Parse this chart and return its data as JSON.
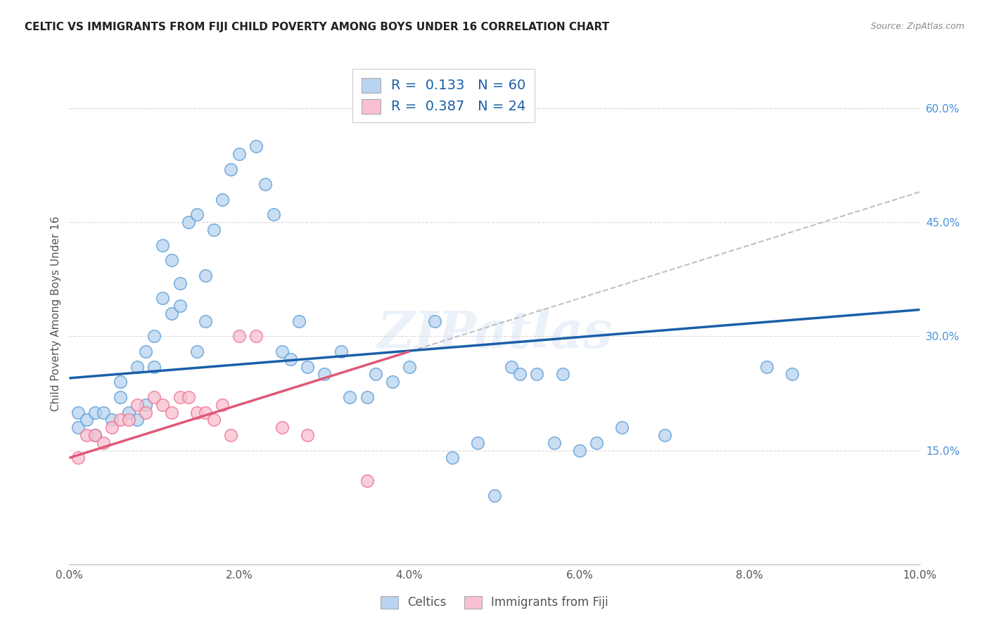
{
  "title": "CELTIC VS IMMIGRANTS FROM FIJI CHILD POVERTY AMONG BOYS UNDER 16 CORRELATION CHART",
  "source": "Source: ZipAtlas.com",
  "ylabel": "Child Poverty Among Boys Under 16",
  "x_min": 0.0,
  "x_max": 0.1,
  "y_min": 0.0,
  "y_max": 0.66,
  "x_ticks": [
    0.0,
    0.02,
    0.04,
    0.06,
    0.08,
    0.1
  ],
  "x_tick_labels": [
    "0.0%",
    "2.0%",
    "4.0%",
    "6.0%",
    "8.0%",
    "10.0%"
  ],
  "y_ticks_right": [
    0.15,
    0.3,
    0.45,
    0.6
  ],
  "y_tick_labels_right": [
    "15.0%",
    "30.0%",
    "45.0%",
    "60.0%"
  ],
  "R1": "0.133",
  "N1": "60",
  "R2": "0.387",
  "N2": "24",
  "blue_color": "#5b9bd5",
  "pink_color": "#f07090",
  "scatter_blue_face": "#b8d4f0",
  "scatter_pink_face": "#f8c0d0",
  "trend_blue_color": "#1a5fa8",
  "trend_pink_color": "#e05878",
  "trend_dashed_color": "#c0c0c0",
  "legend1_face": "#b8d4f0",
  "legend2_face": "#f8c0d0",
  "watermark": "ZIPatlas",
  "celtics_x": [
    0.001,
    0.001,
    0.002,
    0.003,
    0.003,
    0.004,
    0.005,
    0.006,
    0.006,
    0.007,
    0.008,
    0.008,
    0.009,
    0.009,
    0.01,
    0.01,
    0.011,
    0.011,
    0.012,
    0.012,
    0.013,
    0.013,
    0.014,
    0.015,
    0.015,
    0.016,
    0.016,
    0.017,
    0.018,
    0.019,
    0.02,
    0.022,
    0.023,
    0.024,
    0.025,
    0.026,
    0.027,
    0.028,
    0.03,
    0.032,
    0.033,
    0.035,
    0.036,
    0.038,
    0.04,
    0.043,
    0.045,
    0.048,
    0.05,
    0.052,
    0.053,
    0.055,
    0.057,
    0.058,
    0.06,
    0.062,
    0.065,
    0.07,
    0.082,
    0.085
  ],
  "celtics_y": [
    0.18,
    0.2,
    0.19,
    0.17,
    0.2,
    0.2,
    0.19,
    0.22,
    0.24,
    0.2,
    0.26,
    0.19,
    0.21,
    0.28,
    0.26,
    0.3,
    0.35,
    0.42,
    0.4,
    0.33,
    0.37,
    0.34,
    0.45,
    0.46,
    0.28,
    0.38,
    0.32,
    0.44,
    0.48,
    0.52,
    0.54,
    0.55,
    0.5,
    0.46,
    0.28,
    0.27,
    0.32,
    0.26,
    0.25,
    0.28,
    0.22,
    0.22,
    0.25,
    0.24,
    0.26,
    0.32,
    0.14,
    0.16,
    0.09,
    0.26,
    0.25,
    0.25,
    0.16,
    0.25,
    0.15,
    0.16,
    0.18,
    0.17,
    0.26,
    0.25
  ],
  "fiji_x": [
    0.001,
    0.002,
    0.003,
    0.004,
    0.005,
    0.006,
    0.007,
    0.008,
    0.009,
    0.01,
    0.011,
    0.012,
    0.013,
    0.014,
    0.015,
    0.016,
    0.017,
    0.018,
    0.019,
    0.02,
    0.022,
    0.025,
    0.028,
    0.035
  ],
  "fiji_y": [
    0.14,
    0.17,
    0.17,
    0.16,
    0.18,
    0.19,
    0.19,
    0.21,
    0.2,
    0.22,
    0.21,
    0.2,
    0.22,
    0.22,
    0.2,
    0.2,
    0.19,
    0.21,
    0.17,
    0.3,
    0.3,
    0.18,
    0.17,
    0.11
  ],
  "background_color": "#ffffff",
  "grid_color": "#d8d8d8",
  "axis_label_color": "#555555",
  "tick_color_right": "#4a90d9",
  "title_color": "#222222",
  "source_color": "#888888",
  "blue_trend_x0": 0.0,
  "blue_trend_y0": 0.245,
  "blue_trend_x1": 0.1,
  "blue_trend_y1": 0.335,
  "pink_trend_x0": 0.0,
  "pink_trend_y0": 0.14,
  "pink_trend_x1": 0.04,
  "pink_trend_y1": 0.28,
  "dashed_trend_x0": 0.0,
  "dashed_trend_y0": 0.14,
  "dashed_trend_x1": 0.1,
  "dashed_trend_y1": 0.49
}
